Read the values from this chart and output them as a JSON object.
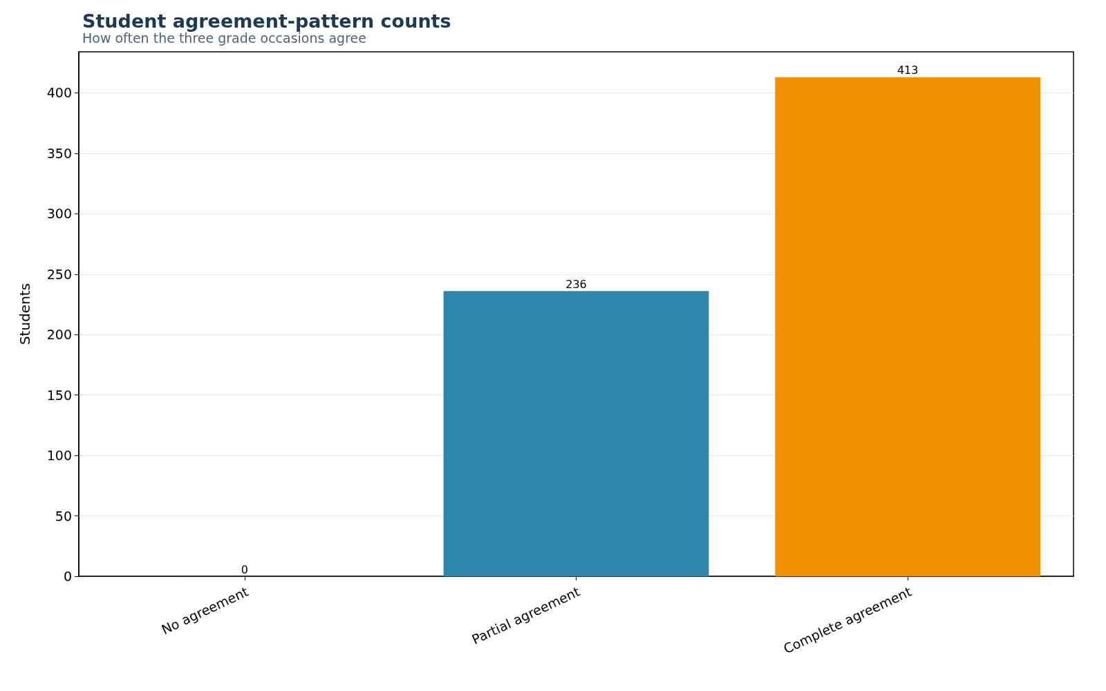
{
  "chart_data": {
    "type": "bar",
    "title": "Student agreement-pattern counts",
    "subtitle": "How often the three grade occasions agree",
    "ylabel": "Students",
    "categories": [
      "No agreement",
      "Partial agreement",
      "Complete agreement"
    ],
    "values": [
      0,
      236,
      413
    ],
    "colors": [
      "#2e86ab",
      "#2e86ab",
      "#f18f01"
    ],
    "ylim": [
      0,
      434
    ],
    "yticks": [
      0,
      50,
      100,
      150,
      200,
      250,
      300,
      350,
      400
    ],
    "grid": "y",
    "data_labels": true
  }
}
